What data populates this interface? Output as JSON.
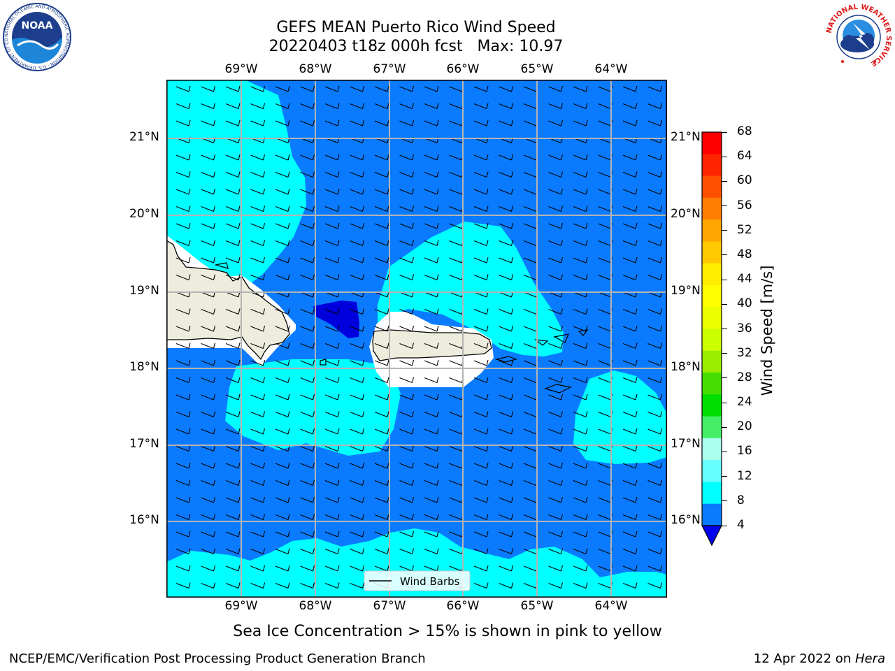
{
  "header": {
    "title_line1": "GEFS MEAN Puerto Rico Wind Speed",
    "title_line2": "20220403 t18z 000h fcst   Max: 10.97"
  },
  "logos": {
    "noaa_text": "NOAA",
    "noaa_ring_text": "NATIONAL OCEANIC AND ATMOSPHERIC ADMINISTRATION · U.S. DEPARTMENT OF COMMERCE",
    "nws_ring_text": "NATIONAL WEATHER SERVICE"
  },
  "map": {
    "lon_labels": [
      "69°W",
      "68°W",
      "67°W",
      "66°W",
      "65°W",
      "64°W"
    ],
    "lat_labels": [
      "21°N",
      "20°N",
      "19°N",
      "18°N",
      "17°N",
      "16°N"
    ],
    "legend_label": "Wind Barbs",
    "colors": {
      "land": "#eeecdc",
      "background_speed": "#0a7bff",
      "moderate_speed": "#00ffff",
      "low_speed": "#0000dd",
      "grid": "#b4b4b4"
    }
  },
  "colorbar": {
    "label": "Wind Speed [m/s]",
    "ticks": [
      "68",
      "64",
      "60",
      "56",
      "52",
      "48",
      "44",
      "40",
      "36",
      "32",
      "28",
      "24",
      "20",
      "16",
      "12",
      "8",
      "4"
    ],
    "colors_top_to_bottom": [
      "#ff0000",
      "#ff2400",
      "#ff5000",
      "#ff7d00",
      "#ffa500",
      "#ffc800",
      "#ffee00",
      "#ffff00",
      "#eeff00",
      "#ccff00",
      "#99ee00",
      "#44dd00",
      "#00dd00",
      "#44ee66",
      "#aaffee",
      "#66ffff",
      "#00ffff",
      "#0a7bff"
    ],
    "under_color": "#0000ee"
  },
  "footer": {
    "note": "Sea Ice Concentration > 15% is shown in pink to yellow",
    "left": "NCEP/EMC/Verification Post Processing Product Generation Branch",
    "date": "12 Apr 2022 on ",
    "host": "Hera"
  }
}
